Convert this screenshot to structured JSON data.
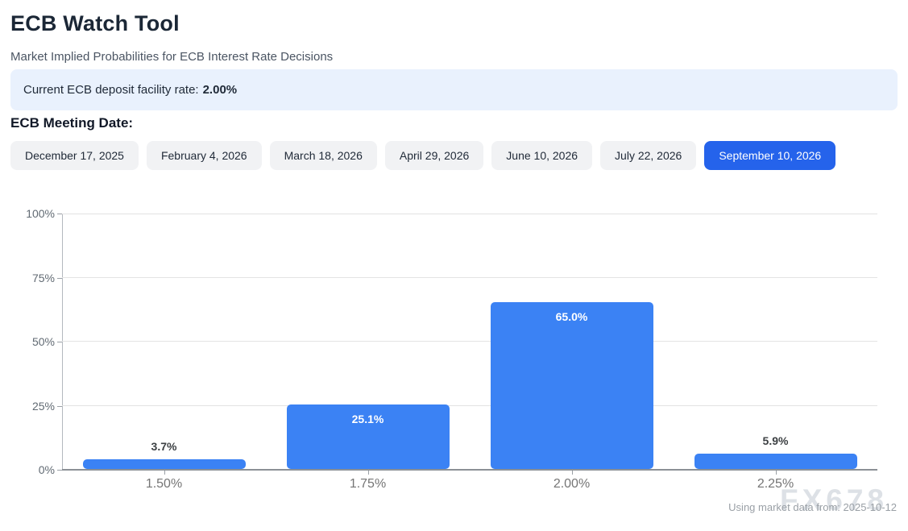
{
  "header": {
    "title": "ECB Watch Tool",
    "subtitle": "Market Implied Probabilities for ECB Interest Rate Decisions"
  },
  "banner": {
    "label": "Current ECB deposit facility rate:",
    "value": "2.00%"
  },
  "meeting": {
    "heading": "ECB Meeting Date:",
    "dates": [
      "December 17, 2025",
      "February 4, 2026",
      "March 18, 2026",
      "April 29, 2026",
      "June 10, 2026",
      "July 22, 2026",
      "September 10, 2026"
    ],
    "selected_index": 6
  },
  "chart_data": {
    "type": "bar",
    "title": "",
    "xlabel": "",
    "ylabel": "",
    "categories": [
      "1.50%",
      "1.75%",
      "2.00%",
      "2.25%"
    ],
    "values": [
      3.7,
      25.1,
      65.0,
      5.9
    ],
    "value_labels": [
      "3.7%",
      "25.1%",
      "65.0%",
      "5.9%"
    ],
    "y_ticks": [
      0,
      25,
      50,
      75,
      100
    ],
    "y_tick_labels": [
      "0%",
      "25%",
      "50%",
      "75%",
      "100%"
    ],
    "ylim": [
      0,
      100
    ],
    "grid": true,
    "legend_position": "none",
    "bar_color": "#3b82f4"
  },
  "footer": {
    "note": "Using market data from: 2025-10-12",
    "watermark": "FX678"
  },
  "colors": {
    "accent": "#2563eb",
    "bar": "#3b82f4",
    "banner_bg": "#e9f1fd",
    "grid": "#e3e3e3",
    "axis": "#8b9096"
  }
}
